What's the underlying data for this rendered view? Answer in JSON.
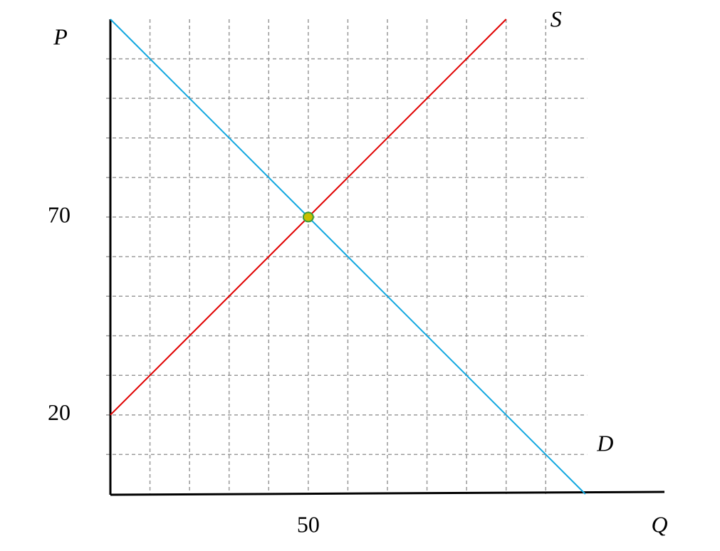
{
  "chart_data": {
    "type": "line",
    "x_label": "Q",
    "y_label": "P",
    "xlim": [
      0,
      140
    ],
    "ylim": [
      0,
      120
    ],
    "xticks": [
      50
    ],
    "yticks": [
      20,
      70
    ],
    "xgrid": [
      10,
      20,
      30,
      40,
      50,
      60,
      70,
      80,
      90,
      100,
      110
    ],
    "ygrid": [
      10,
      20,
      30,
      40,
      50,
      60,
      70,
      80,
      90,
      100,
      110
    ],
    "grid": true,
    "series": [
      {
        "name": "D",
        "color": "#12a8e0",
        "x": [
          0,
          120
        ],
        "values": [
          120,
          0
        ]
      },
      {
        "name": "S",
        "color": "#e00000",
        "x": [
          0,
          100
        ],
        "values": [
          20,
          120
        ]
      }
    ],
    "points": [
      {
        "x": 50,
        "y": 70,
        "color": "#c8c000",
        "stroke": "#3a9a3a"
      }
    ]
  }
}
